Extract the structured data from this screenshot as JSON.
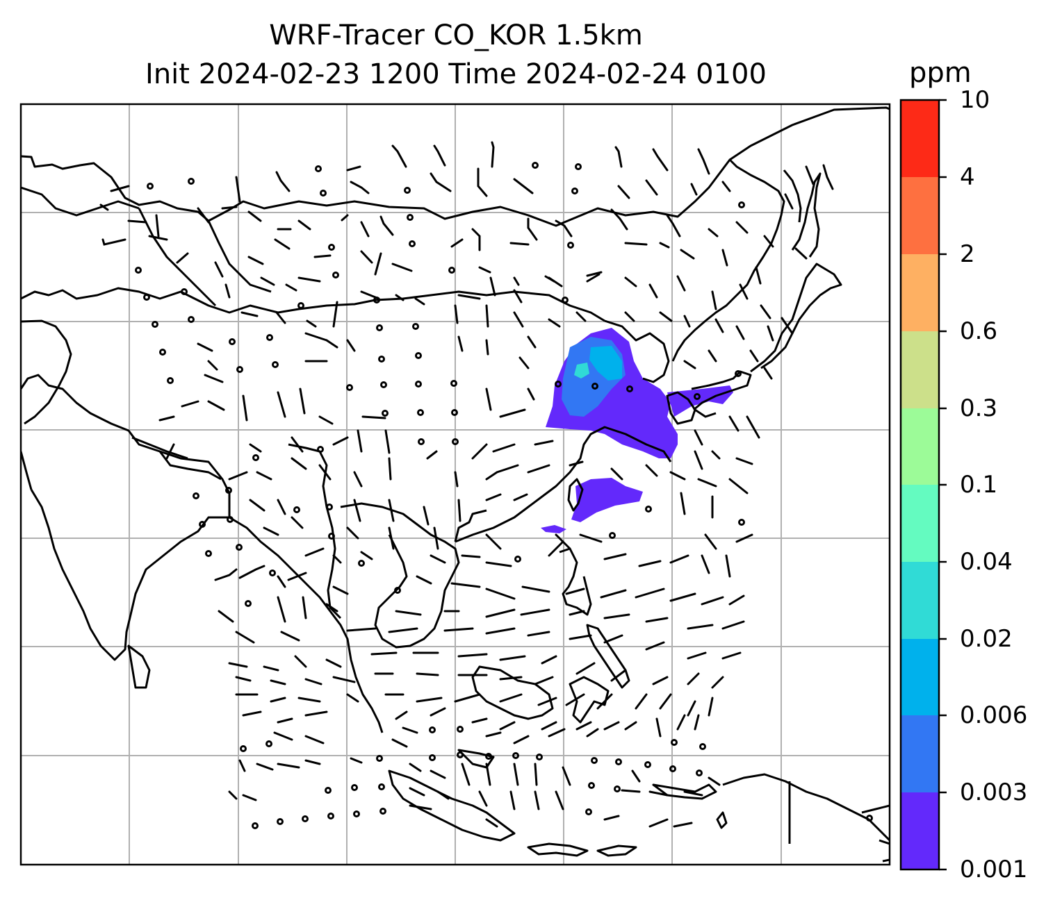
{
  "title": {
    "line1": "WRF-Tracer CO_KOR 1.5km",
    "line2": "Init 2024-02-23 1200 Time 2024-02-24 0100"
  },
  "colorbar": {
    "unit": "ppm",
    "levels": [
      "0.001",
      "0.003",
      "0.006",
      "0.02",
      "0.04",
      "0.1",
      "0.3",
      "0.6",
      "2",
      "4",
      "10"
    ],
    "colors": [
      "#6329fb",
      "#3277f3",
      "#00b1ec",
      "#30dbd6",
      "#64fbc0",
      "#9cfb98",
      "#cce08a",
      "#feb062",
      "#fe7040",
      "#fd2a17"
    ]
  },
  "map": {
    "gridlines": "on",
    "coastline_color": "#000000",
    "wind_barbs": true
  }
}
